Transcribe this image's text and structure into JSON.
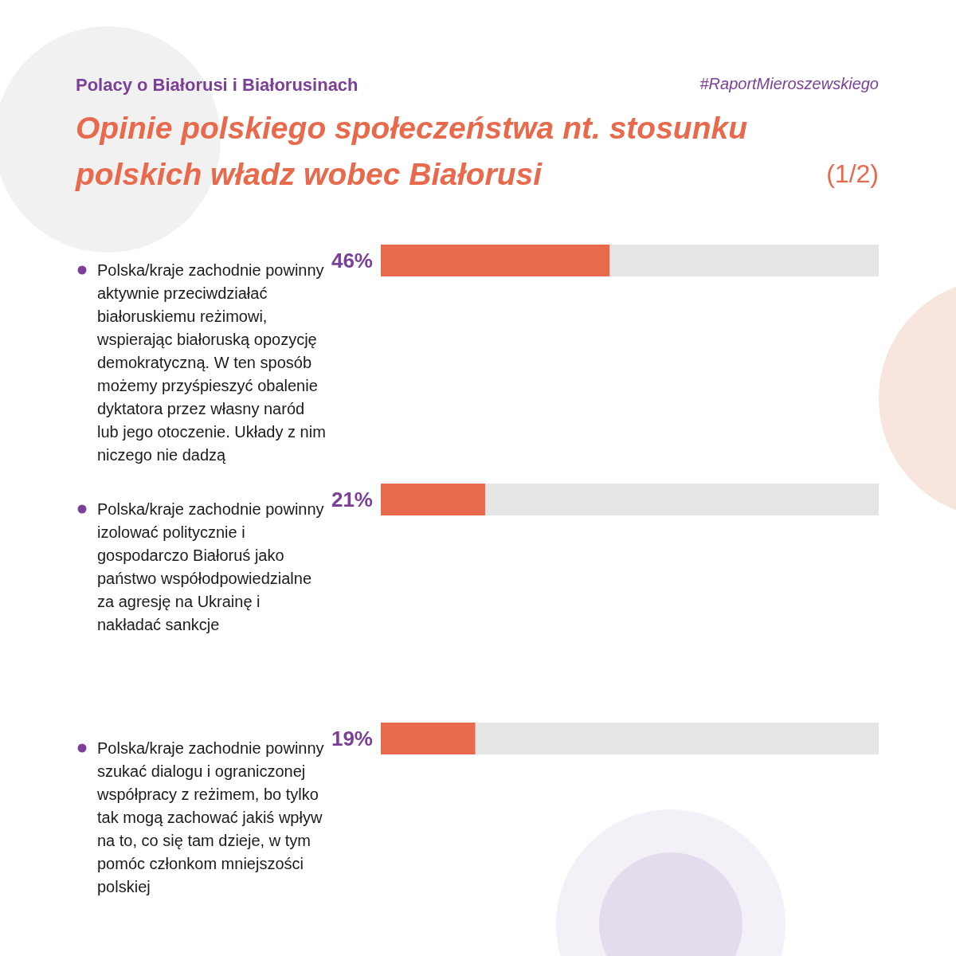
{
  "chart_data": {
    "type": "bar",
    "orientation": "horizontal",
    "stacked": true,
    "subtitle": "Polacy o Białorusi i Białorusinach",
    "title": "Opinie polskiego społeczeństwa nt. stosunku polskich władz wobec Białorusi",
    "annotations": [
      "#RaportMieroszewskiego",
      "(1/2)"
    ],
    "categories": [
      "Polska/kraje zachodnie powinny aktywnie przeciwdziałać białoruskiemu reżimowi, wspierając białoruską opozycję demokratyczną. W ten sposób możemy przyśpieszyć obalenie dyktatora przez własny naród lub jego otoczenie. Układy z nim niczego nie dadzą",
      "Polska/kraje zachodnie powinny izolować politycznie i gospodarczo Białoruś jako państwo współodpowiedzialne za agresję na Ukrainę i nakładać sankcje",
      "Polska/kraje zachodnie powinny szukać dialogu i ograniczonej współpracy z reżimem, bo tylko tak mogą zachować jakiś wpływ na to, co się tam dzieje, w tym pomóc członkom mniejszości polskiej"
    ],
    "series": [
      {
        "color": "#e8694b",
        "values": [
          46,
          21,
          19
        ],
        "value_labels": [
          "46%",
          "21%",
          "19%"
        ]
      },
      {
        "color": "#e5e5e5",
        "values": [
          54,
          79,
          81
        ]
      }
    ],
    "xlim": [
      0,
      100
    ],
    "tick_labels": "y"
  }
}
